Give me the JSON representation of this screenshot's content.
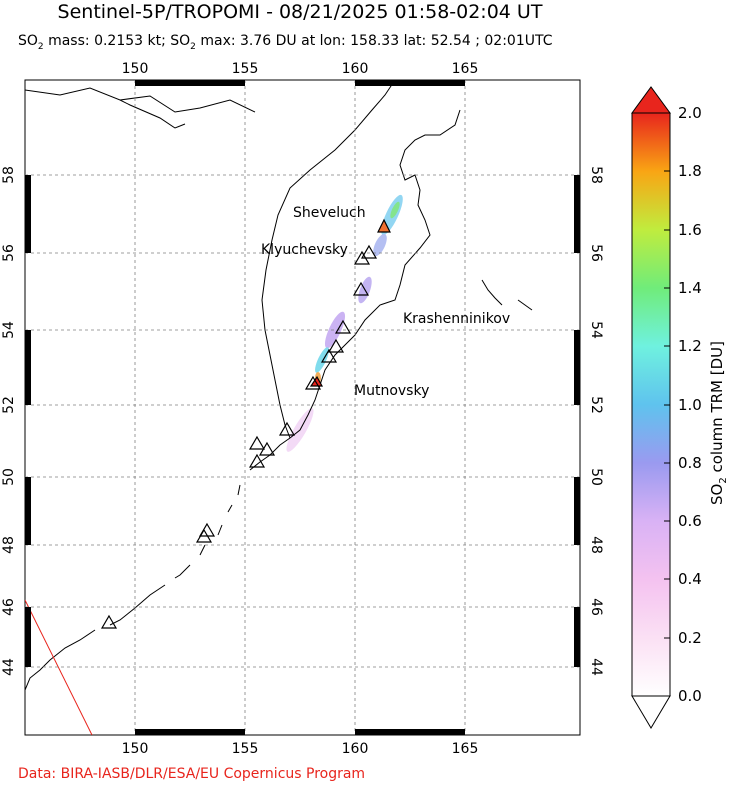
{
  "title": "Sentinel-5P/TROPOMI - 08/21/2025 01:58-02:04 UT",
  "subtitle": {
    "so2_mass_prefix": "SO",
    "so2_sub": "2",
    "mass_text": " mass: 0.2153 kt; SO",
    "max_text": " max: 3.76 DU at lon: 158.33 lat: 52.54 ; 02:01UTC"
  },
  "map": {
    "lon_range": [
      145,
      170
    ],
    "lat_range": [
      42.5,
      61
    ],
    "lon_ticks": [
      "150",
      "155",
      "160",
      "165"
    ],
    "lat_ticks": [
      "44",
      "46",
      "48",
      "50",
      "52",
      "54",
      "56",
      "58"
    ],
    "grid": "dashed",
    "volcano_labels": [
      {
        "name": "Sheveluch"
      },
      {
        "name": "Klyuchevsky"
      },
      {
        "name": "Krashenninikov"
      },
      {
        "name": "Mutnovsky"
      }
    ],
    "colors": {
      "coast": "#000000",
      "volcano_marker": "#000000",
      "swath_edge": "#e8251d",
      "grid": "#808080"
    }
  },
  "colorbar": {
    "title": "SO2 column TRM [DU]",
    "label_main": "SO",
    "label_sub": "2",
    "label_rest": " column TRM [DU]",
    "ticks": [
      "0.0",
      "0.2",
      "0.4",
      "0.6",
      "0.8",
      "1.0",
      "1.2",
      "1.4",
      "1.6",
      "1.8",
      "2.0"
    ],
    "range": [
      0,
      2.0
    ],
    "colors": [
      "#ffffff",
      "#fbd6f2",
      "#d9b2f5",
      "#8e96ec",
      "#5fc3ee",
      "#6ff1df",
      "#70ec7a",
      "#c0ec3e",
      "#f7d21b",
      "#f98b13",
      "#e8251d"
    ]
  },
  "credit": "Data: BIRA-IASB/DLR/ESA/EU Copernicus Program"
}
